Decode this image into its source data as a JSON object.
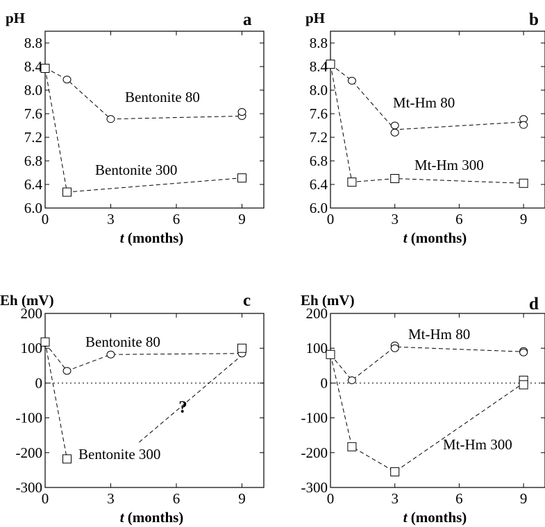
{
  "chart_data": [
    {
      "type": "scatter",
      "panel_label": "a",
      "ylabel": "pH",
      "xlabel_var": "t",
      "xlabel_rest": " (months)",
      "xlim": [
        0,
        10
      ],
      "ylim": [
        6.0,
        9.0
      ],
      "xticks": [
        "0",
        "3",
        "6",
        "9"
      ],
      "xtick_values": [
        0,
        3,
        6,
        9
      ],
      "yticks": [
        "6.0",
        "6.4",
        "6.8",
        "7.2",
        "7.6",
        "8.0",
        "8.4",
        "8.8"
      ],
      "ytick_values": [
        6.0,
        6.4,
        6.8,
        7.2,
        7.6,
        8.0,
        8.4,
        8.8
      ],
      "zero_line": false,
      "series": [
        {
          "name": "Bentonite 80",
          "marker": "circle",
          "points": [
            [
              0,
              8.38
            ],
            [
              1,
              8.18
            ],
            [
              3,
              7.51
            ],
            [
              9,
              7.56
            ],
            [
              9,
              7.63
            ]
          ],
          "line": [
            [
              0,
              8.38
            ],
            [
              1,
              8.18
            ],
            [
              3,
              7.51
            ],
            [
              9,
              7.56
            ]
          ]
        },
        {
          "name": "Bentonite 300",
          "marker": "square",
          "points": [
            [
              0,
              8.37
            ],
            [
              1,
              6.27
            ],
            [
              9,
              6.51
            ]
          ],
          "line": [
            [
              0,
              8.37
            ],
            [
              1,
              6.27
            ],
            [
              9,
              6.51
            ]
          ]
        }
      ],
      "annotations": []
    },
    {
      "type": "scatter",
      "panel_label": "b",
      "ylabel": "pH",
      "xlabel_var": "t",
      "xlabel_rest": " (months)",
      "xlim": [
        0,
        10
      ],
      "ylim": [
        6.0,
        9.0
      ],
      "xticks": [
        "0",
        "3",
        "6",
        "9"
      ],
      "xtick_values": [
        0,
        3,
        6,
        9
      ],
      "yticks": [
        "6.0",
        "6.4",
        "6.8",
        "7.2",
        "7.6",
        "8.0",
        "8.4",
        "8.8"
      ],
      "ytick_values": [
        6.0,
        6.4,
        6.8,
        7.2,
        7.6,
        8.0,
        8.4,
        8.8
      ],
      "zero_line": false,
      "series": [
        {
          "name": "Mt-Hm 80",
          "marker": "circle",
          "points": [
            [
              0,
              8.44
            ],
            [
              1,
              8.16
            ],
            [
              3,
              7.4
            ],
            [
              3,
              7.28
            ],
            [
              9,
              7.51
            ],
            [
              9,
              7.41
            ]
          ],
          "line": [
            [
              0,
              8.44
            ],
            [
              1,
              8.16
            ],
            [
              3,
              7.33
            ],
            [
              9,
              7.46
            ]
          ]
        },
        {
          "name": "Mt-Hm 300",
          "marker": "square",
          "points": [
            [
              0,
              8.44
            ],
            [
              1,
              6.44
            ],
            [
              3,
              6.5
            ],
            [
              9,
              6.42
            ]
          ],
          "line": [
            [
              0,
              8.44
            ],
            [
              1,
              6.44
            ],
            [
              3,
              6.5
            ],
            [
              9,
              6.42
            ]
          ]
        }
      ],
      "annotations": []
    },
    {
      "type": "scatter",
      "panel_label": "c",
      "ylabel": "Eh (mV)",
      "xlabel_var": "t",
      "xlabel_rest": " (months)",
      "xlim": [
        0,
        10
      ],
      "ylim": [
        -300,
        200
      ],
      "xticks": [
        "0",
        "3",
        "6",
        "9"
      ],
      "xtick_values": [
        0,
        3,
        6,
        9
      ],
      "yticks": [
        "-300",
        "-200",
        "-100",
        "0",
        "100",
        "200"
      ],
      "ytick_values": [
        -300,
        -200,
        -100,
        0,
        100,
        200
      ],
      "zero_line": true,
      "series": [
        {
          "name": "Bentonite 80",
          "marker": "circle",
          "points": [
            [
              0,
              115
            ],
            [
              1,
              35
            ],
            [
              3,
              82
            ],
            [
              9,
              85
            ]
          ],
          "line": [
            [
              0,
              115
            ],
            [
              1,
              35
            ],
            [
              3,
              82
            ],
            [
              9,
              85
            ]
          ]
        },
        {
          "name": "Bentonite 300",
          "marker": "square",
          "points": [
            [
              0,
              118
            ],
            [
              1,
              -218
            ],
            [
              9,
              100
            ]
          ],
          "line": [
            [
              0,
              118
            ],
            [
              1,
              -218
            ]
          ]
        }
      ],
      "annotations": [
        {
          "text": "?",
          "x": 6.3,
          "y": -85
        }
      ],
      "extra_lines": [
        {
          "points": [
            [
              4.3,
              -170
            ],
            [
              9,
              80
            ]
          ]
        }
      ]
    },
    {
      "type": "scatter",
      "panel_label": "d",
      "ylabel": "Eh (mV)",
      "xlabel_var": "t",
      "xlabel_rest": " (months)",
      "xlim": [
        0,
        10
      ],
      "ylim": [
        -300,
        200
      ],
      "xticks": [
        "0",
        "3",
        "6",
        "9"
      ],
      "xtick_values": [
        0,
        3,
        6,
        9
      ],
      "yticks": [
        "-300",
        "-200",
        "-100",
        "0",
        "100",
        "200"
      ],
      "ytick_values": [
        -300,
        -200,
        -100,
        0,
        100,
        200
      ],
      "zero_line": true,
      "series": [
        {
          "name": "Mt-Hm 80",
          "marker": "circle",
          "points": [
            [
              0,
              82
            ],
            [
              1,
              8
            ],
            [
              3,
              108
            ],
            [
              3,
              100
            ],
            [
              9,
              92
            ],
            [
              9,
              88
            ]
          ],
          "line": [
            [
              0,
              82
            ],
            [
              1,
              8
            ],
            [
              3,
              104
            ],
            [
              9,
              90
            ]
          ]
        },
        {
          "name": "Mt-Hm 300",
          "marker": "square",
          "points": [
            [
              0,
              82
            ],
            [
              1,
              -183
            ],
            [
              3,
              -255
            ],
            [
              9,
              8
            ],
            [
              9,
              -5
            ]
          ],
          "line": [
            [
              0,
              82
            ],
            [
              1,
              -183
            ],
            [
              3,
              -255
            ],
            [
              9,
              0
            ]
          ]
        }
      ],
      "annotations": []
    }
  ]
}
